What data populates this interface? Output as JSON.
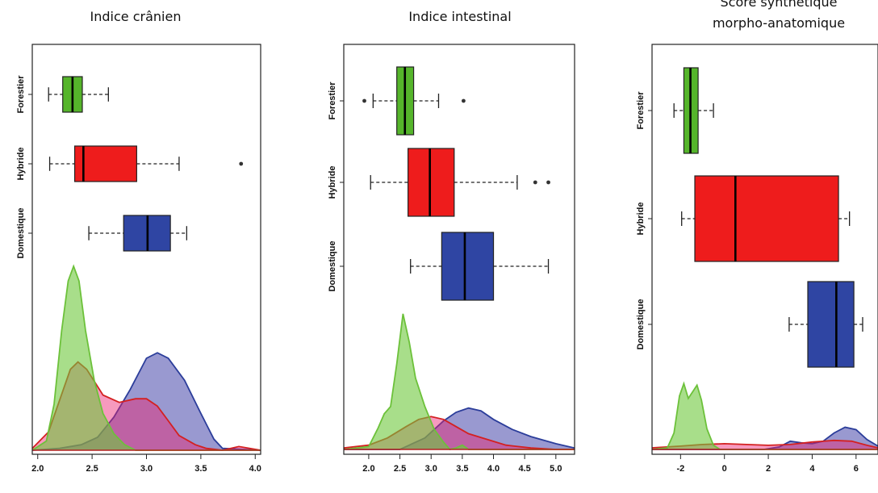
{
  "chart_data": [
    {
      "type": "boxplot+density",
      "title": "Indice crânien",
      "title_lines": [
        "Indice crânien"
      ],
      "xlim": [
        1.95,
        4.05
      ],
      "xticks": [
        2.0,
        2.5,
        3.0,
        3.5,
        4.0
      ],
      "xtick_labels": [
        "2.0",
        "2.5",
        "3.0",
        "3.5",
        "4.0"
      ],
      "categories": [
        "Forestier",
        "Hybride",
        "Domestique"
      ],
      "boxes": [
        {
          "name": "Forestier",
          "whisker_low": 2.1,
          "q1": 2.23,
          "median": 2.32,
          "q3": 2.41,
          "whisker_high": 2.65,
          "outliers": []
        },
        {
          "name": "Hybride",
          "whisker_low": 2.11,
          "q1": 2.34,
          "median": 2.42,
          "q3": 2.91,
          "whisker_high": 3.3,
          "outliers": [
            3.87
          ]
        },
        {
          "name": "Domestique",
          "whisker_low": 2.47,
          "q1": 2.79,
          "median": 3.01,
          "q3": 3.22,
          "whisker_high": 3.37,
          "outliers": []
        }
      ],
      "densities": [
        {
          "name": "Domestique",
          "x": [
            1.95,
            2.2,
            2.4,
            2.55,
            2.7,
            2.85,
            3.0,
            3.1,
            3.2,
            3.35,
            3.5,
            3.62,
            3.7,
            4.05
          ],
          "y": [
            0,
            0.01,
            0.03,
            0.07,
            0.18,
            0.33,
            0.5,
            0.53,
            0.5,
            0.38,
            0.2,
            0.06,
            0.01,
            0
          ]
        },
        {
          "name": "Hybride",
          "x": [
            1.95,
            2.1,
            2.2,
            2.3,
            2.37,
            2.45,
            2.6,
            2.75,
            2.9,
            3.0,
            3.1,
            3.2,
            3.3,
            3.45,
            3.55,
            3.7,
            3.85,
            4.05
          ],
          "y": [
            0.01,
            0.1,
            0.27,
            0.44,
            0.48,
            0.44,
            0.3,
            0.26,
            0.28,
            0.28,
            0.24,
            0.16,
            0.08,
            0.03,
            0.01,
            0.0,
            0.02,
            0.0
          ]
        },
        {
          "name": "Forestier",
          "x": [
            1.95,
            2.08,
            2.15,
            2.22,
            2.28,
            2.33,
            2.38,
            2.44,
            2.52,
            2.6,
            2.7,
            2.8,
            2.9,
            4.05
          ],
          "y": [
            0,
            0.05,
            0.25,
            0.65,
            0.92,
            1.0,
            0.92,
            0.65,
            0.38,
            0.2,
            0.09,
            0.03,
            0,
            0
          ]
        }
      ],
      "ylim": [
        0,
        1.0
      ]
    },
    {
      "type": "boxplot+density",
      "title": "Indice intestinal",
      "title_lines": [
        "Indice intestinal"
      ],
      "xlim": [
        1.6,
        5.3
      ],
      "xticks": [
        2.0,
        2.5,
        3.0,
        3.5,
        4.0,
        4.5,
        5.0
      ],
      "xtick_labels": [
        "2.0",
        "2.5",
        "3.0",
        "3.5",
        "4.0",
        "4.5",
        "5.0"
      ],
      "categories": [
        "Forestier",
        "Hybride",
        "Domestique"
      ],
      "boxes": [
        {
          "name": "Forestier",
          "whisker_low": 2.07,
          "q1": 2.45,
          "median": 2.58,
          "q3": 2.72,
          "whisker_high": 3.12,
          "outliers": [
            1.93,
            3.52
          ]
        },
        {
          "name": "Hybride",
          "whisker_low": 2.03,
          "q1": 2.63,
          "median": 2.98,
          "q3": 3.37,
          "whisker_high": 4.38,
          "outliers": [
            4.67,
            4.88
          ]
        },
        {
          "name": "Domestique",
          "whisker_low": 2.67,
          "q1": 3.17,
          "median": 3.54,
          "q3": 4.0,
          "whisker_high": 4.88,
          "outliers": []
        }
      ],
      "densities": [
        {
          "name": "Domestique",
          "x": [
            1.6,
            2.5,
            2.9,
            3.2,
            3.4,
            3.6,
            3.8,
            4.0,
            4.3,
            4.6,
            5.0,
            5.3
          ],
          "y": [
            0,
            0.0,
            0.08,
            0.2,
            0.26,
            0.29,
            0.27,
            0.21,
            0.14,
            0.09,
            0.04,
            0.01
          ]
        },
        {
          "name": "Hybride",
          "x": [
            1.6,
            2.0,
            2.3,
            2.6,
            2.8,
            3.0,
            3.2,
            3.4,
            3.6,
            3.9,
            4.2,
            4.6,
            5.0,
            5.3
          ],
          "y": [
            0.01,
            0.03,
            0.08,
            0.16,
            0.21,
            0.23,
            0.21,
            0.16,
            0.11,
            0.07,
            0.03,
            0.01,
            0.0,
            0
          ]
        },
        {
          "name": "Forestier",
          "x": [
            1.6,
            2.0,
            2.15,
            2.25,
            2.35,
            2.45,
            2.55,
            2.65,
            2.75,
            2.9,
            3.05,
            3.2,
            3.3,
            3.4,
            3.5,
            3.6,
            5.3
          ],
          "y": [
            0,
            0.02,
            0.15,
            0.25,
            0.3,
            0.6,
            0.95,
            0.75,
            0.5,
            0.3,
            0.14,
            0.05,
            0.0,
            0.01,
            0.03,
            0.0,
            0
          ]
        }
      ],
      "ylim": [
        0,
        1.0
      ]
    },
    {
      "type": "boxplot+density",
      "title": "Score synthétique morpho-anatomique",
      "title_lines": [
        "Score synthétique",
        "morpho-anatomique"
      ],
      "xlim": [
        -3.3,
        7.0
      ],
      "xticks": [
        -2,
        0,
        2,
        4,
        6
      ],
      "xtick_labels": [
        "-2",
        "0",
        "2",
        "4",
        "6"
      ],
      "categories": [
        "Forestier",
        "Hybride",
        "Domestique"
      ],
      "boxes": [
        {
          "name": "Forestier",
          "whisker_low": -2.3,
          "q1": -1.85,
          "median": -1.55,
          "q3": -1.2,
          "whisker_high": -0.5,
          "outliers": []
        },
        {
          "name": "Hybride",
          "whisker_low": -1.95,
          "q1": -1.35,
          "median": 0.5,
          "q3": 5.2,
          "whisker_high": 5.7,
          "outliers": []
        },
        {
          "name": "Domestique",
          "whisker_low": 2.95,
          "q1": 3.8,
          "median": 5.1,
          "q3": 5.9,
          "whisker_high": 6.3,
          "outliers": []
        }
      ],
      "densities": [
        {
          "name": "Domestique",
          "x": [
            -3.3,
            1.8,
            2.5,
            3.0,
            3.5,
            4.0,
            4.5,
            5.0,
            5.5,
            6.0,
            6.5,
            7.0
          ],
          "y": [
            0,
            0.0,
            0.03,
            0.1,
            0.08,
            0.07,
            0.1,
            0.2,
            0.27,
            0.24,
            0.12,
            0.04
          ]
        },
        {
          "name": "Hybride",
          "x": [
            -3.3,
            -2.0,
            -1.0,
            0.0,
            1.0,
            2.0,
            3.0,
            4.0,
            5.0,
            5.8,
            6.5,
            7.0
          ],
          "y": [
            0.02,
            0.04,
            0.06,
            0.07,
            0.06,
            0.05,
            0.06,
            0.09,
            0.11,
            0.1,
            0.05,
            0.02
          ]
        },
        {
          "name": "Forestier",
          "x": [
            -3.3,
            -2.6,
            -2.3,
            -2.05,
            -1.85,
            -1.65,
            -1.45,
            -1.25,
            -1.05,
            -0.8,
            -0.5,
            -0.2,
            7.0
          ],
          "y": [
            0,
            0.02,
            0.2,
            0.65,
            0.8,
            0.62,
            0.7,
            0.78,
            0.6,
            0.25,
            0.05,
            0,
            0
          ]
        }
      ],
      "ylim": [
        0,
        1.0
      ]
    }
  ],
  "colors": {
    "Forestier": "#55b52b",
    "Hybride": "#ee1c1c",
    "Domestique": "#2f45a3",
    "Forestier_fill": "rgba(110,200,60,0.6)",
    "Hybride_fill": "rgba(235,30,110,0.45)",
    "Domestique_fill": "rgba(70,70,170,0.55)",
    "Forestier_line": "#6cc13a",
    "Hybride_line": "#d42020",
    "Domestique_line": "#2b3d9a"
  }
}
